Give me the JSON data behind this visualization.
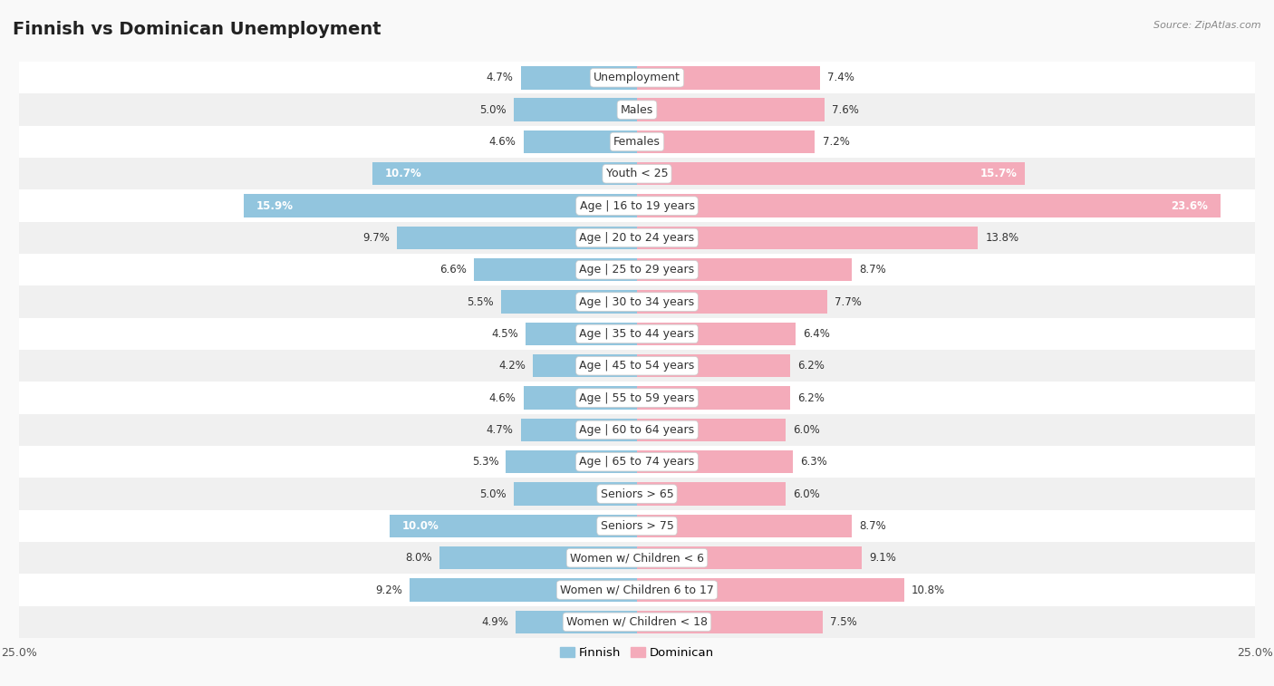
{
  "title": "Finnish vs Dominican Unemployment",
  "source": "Source: ZipAtlas.com",
  "categories": [
    "Unemployment",
    "Males",
    "Females",
    "Youth < 25",
    "Age | 16 to 19 years",
    "Age | 20 to 24 years",
    "Age | 25 to 29 years",
    "Age | 30 to 34 years",
    "Age | 35 to 44 years",
    "Age | 45 to 54 years",
    "Age | 55 to 59 years",
    "Age | 60 to 64 years",
    "Age | 65 to 74 years",
    "Seniors > 65",
    "Seniors > 75",
    "Women w/ Children < 6",
    "Women w/ Children 6 to 17",
    "Women w/ Children < 18"
  ],
  "finnish": [
    4.7,
    5.0,
    4.6,
    10.7,
    15.9,
    9.7,
    6.6,
    5.5,
    4.5,
    4.2,
    4.6,
    4.7,
    5.3,
    5.0,
    10.0,
    8.0,
    9.2,
    4.9
  ],
  "dominican": [
    7.4,
    7.6,
    7.2,
    15.7,
    23.6,
    13.8,
    8.7,
    7.7,
    6.4,
    6.2,
    6.2,
    6.0,
    6.3,
    6.0,
    8.7,
    9.1,
    10.8,
    7.5
  ],
  "finnish_color": "#92C5DE",
  "dominican_color": "#F4ABBA",
  "finnish_color_dark": "#6BAED6",
  "dominican_color_dark": "#E87B96",
  "axis_max": 25.0,
  "row_color_odd": "#f0f0f0",
  "row_color_even": "#ffffff",
  "title_fontsize": 14,
  "label_fontsize": 9,
  "value_fontsize": 8.5,
  "source_fontsize": 8
}
